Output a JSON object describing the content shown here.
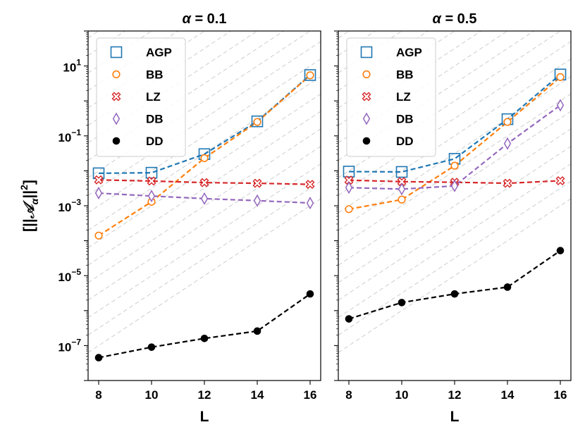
{
  "chart_data": {
    "type": "line",
    "ylabel": "[||𝒜_α||²]",
    "ylabel_parts": {
      "open": "[||",
      "sym": "𝒜",
      "sub": "α",
      "close": "||",
      "sup": "2",
      "end": "]"
    },
    "xlabel": "L",
    "yscale": "log",
    "ylim": [
      1e-08,
      100
    ],
    "xlim": [
      7.6,
      16.4
    ],
    "xticks": [
      8,
      10,
      12,
      14,
      16
    ],
    "yticks": [
      {
        "value": 1e-07,
        "base": "10",
        "exp": "−7"
      },
      {
        "value": 1e-05,
        "base": "10",
        "exp": "−5"
      },
      {
        "value": 0.001,
        "base": "10",
        "exp": "−3"
      },
      {
        "value": 0.1,
        "base": "10",
        "exp": "−1"
      },
      {
        "value": 10,
        "base": "10",
        "exp": "1"
      }
    ],
    "legend": {
      "position": "top-left",
      "entries": [
        "AGP",
        "BB",
        "LZ",
        "DB",
        "DD"
      ]
    },
    "series_styles": {
      "AGP": {
        "color": "#1f77b4",
        "marker": "square"
      },
      "BB": {
        "color": "#ff7f0e",
        "marker": "circle"
      },
      "LZ": {
        "color": "#d62728",
        "marker": "x"
      },
      "DB": {
        "color": "#9467bd",
        "marker": "diamond"
      },
      "DD": {
        "color": "#000000",
        "marker": "filled-circle"
      }
    },
    "panels": [
      {
        "title": "α = 0.1",
        "title_parts": {
          "sym": "α",
          "rest": " = 0.1"
        },
        "x": [
          8,
          10,
          12,
          14,
          16
        ],
        "series": [
          {
            "name": "AGP",
            "values": [
              0.0085,
              0.0088,
              0.03,
              0.26,
              5.5
            ]
          },
          {
            "name": "BB",
            "values": [
              0.00014,
              0.0013,
              0.023,
              0.25,
              5.4
            ]
          },
          {
            "name": "LZ",
            "values": [
              0.0055,
              0.0051,
              0.0046,
              0.0044,
              0.0041
            ]
          },
          {
            "name": "DB",
            "values": [
              0.0023,
              0.0019,
              0.0016,
              0.0014,
              0.0012
            ]
          },
          {
            "name": "DD",
            "values": [
              4.5e-08,
              9e-08,
              1.6e-07,
              2.6e-07,
              3e-06
            ]
          }
        ]
      },
      {
        "title": "α = 0.5",
        "title_parts": {
          "sym": "α",
          "rest": " = 0.5"
        },
        "x": [
          8,
          10,
          12,
          14,
          16
        ],
        "series": [
          {
            "name": "AGP",
            "values": [
              0.0095,
              0.0093,
              0.022,
              0.3,
              5.7
            ]
          },
          {
            "name": "BB",
            "values": [
              0.0008,
              0.0015,
              0.014,
              0.25,
              4.8
            ]
          },
          {
            "name": "LZ",
            "values": [
              0.0054,
              0.0049,
              0.0047,
              0.0044,
              0.0052
            ]
          },
          {
            "name": "DB",
            "values": [
              0.0033,
              0.003,
              0.0037,
              0.06,
              0.75
            ]
          },
          {
            "name": "DD",
            "values": [
              5.8e-07,
              1.7e-06,
              3e-06,
              4.7e-06,
              5.2e-05
            ]
          }
        ]
      }
    ]
  }
}
